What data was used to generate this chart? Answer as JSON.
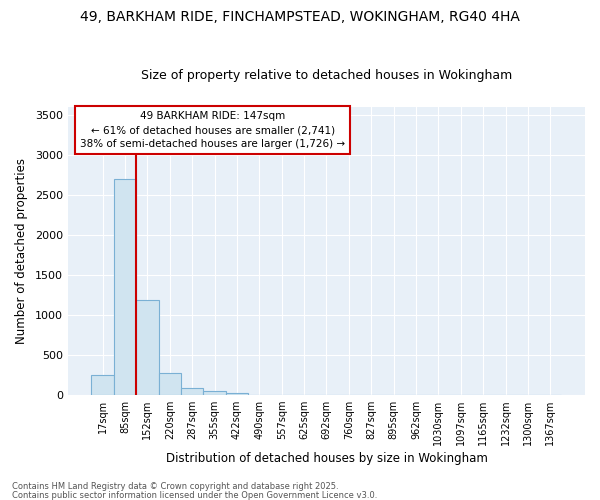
{
  "title_line1": "49, BARKHAM RIDE, FINCHAMPSTEAD, WOKINGHAM, RG40 4HA",
  "title_line2": "Size of property relative to detached houses in Wokingham",
  "xlabel": "Distribution of detached houses by size in Wokingham",
  "ylabel": "Number of detached properties",
  "categories": [
    "17sqm",
    "85sqm",
    "152sqm",
    "220sqm",
    "287sqm",
    "355sqm",
    "422sqm",
    "490sqm",
    "557sqm",
    "625sqm",
    "692sqm",
    "760sqm",
    "827sqm",
    "895sqm",
    "962sqm",
    "1030sqm",
    "1097sqm",
    "1165sqm",
    "1232sqm",
    "1300sqm",
    "1367sqm"
  ],
  "values": [
    250,
    2700,
    1180,
    275,
    85,
    40,
    15,
    0,
    0,
    0,
    0,
    0,
    0,
    0,
    0,
    0,
    0,
    0,
    0,
    0,
    0
  ],
  "bar_color": "#d0e4f0",
  "bar_edge_color": "#7ab0d4",
  "vline_color": "#cc0000",
  "annotation_line1": "49 BARKHAM RIDE: 147sqm",
  "annotation_line2": "← 61% of detached houses are smaller (2,741)",
  "annotation_line3": "38% of semi-detached houses are larger (1,726) →",
  "annotation_box_color": "#ffffff",
  "annotation_box_edge_color": "#cc0000",
  "ylim": [
    0,
    3600
  ],
  "yticks": [
    0,
    500,
    1000,
    1500,
    2000,
    2500,
    3000,
    3500
  ],
  "fig_background": "#ffffff",
  "plot_background": "#e8f0f8",
  "grid_color": "#ffffff",
  "footer_line1": "Contains HM Land Registry data © Crown copyright and database right 2025.",
  "footer_line2": "Contains public sector information licensed under the Open Government Licence v3.0."
}
